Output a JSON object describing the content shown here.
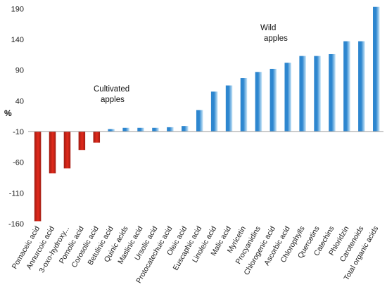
{
  "chart_data": {
    "type": "bar",
    "title": "",
    "xlabel": "",
    "ylabel": "%",
    "ylim": [
      -160,
      195
    ],
    "yticks": [
      190,
      140,
      90,
      40,
      -10,
      -60,
      -110,
      -160
    ],
    "baseline": -10,
    "grid": false,
    "categories": [
      "Pomaceic acid",
      "Annurcoic acid",
      "3-oxo-hydroxy...",
      "Pomolic acid",
      "Corosolic acid",
      "Betulinic acid",
      "Quinic acids",
      "Maslinic acid",
      "Ursolic acid",
      "Protocatechuic acid",
      "Oleic acid",
      "Euscaphic acid",
      "Linoleic acid",
      "Malic acid",
      "Myricetin",
      "Procyanidins",
      "Chlorogenic acid",
      "Ascorbic acid",
      "Chlorophylls",
      "Quercetins",
      "Catechins",
      "Phloridzin",
      "Carotenoids",
      "Total organic acids"
    ],
    "values": [
      -156,
      -78,
      -70,
      -40,
      -28,
      -6,
      -4,
      -4,
      -4,
      -3,
      -1,
      25,
      55,
      65,
      77,
      87,
      92,
      102,
      113,
      113,
      116,
      137,
      137,
      193
    ],
    "colors": {
      "cultivated_dark": "#a01c12",
      "cultivated_light": "#e32a1c",
      "wild_dark": "#2d86cf",
      "wild_light": "#c9e6f8"
    },
    "annotations": {
      "cultivated": [
        "Cultivated",
        "apples"
      ],
      "wild": [
        "Wild",
        "apples"
      ]
    }
  }
}
